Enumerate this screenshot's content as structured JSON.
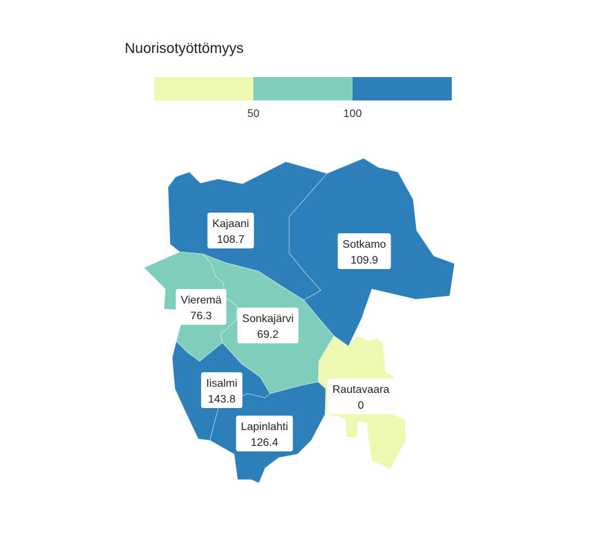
{
  "title": "Nuorisotyöttömyys",
  "legend": {
    "bins": [
      {
        "from": 0,
        "to": 50,
        "color": "#edf8b1"
      },
      {
        "from": 50,
        "to": 100,
        "color": "#7fcdbb"
      },
      {
        "from": 100,
        "to": 150,
        "color": "#2c7fb8"
      }
    ],
    "ticks": [
      "50",
      "100"
    ]
  },
  "regions": [
    {
      "id": "kajaani",
      "name": "Kajaani",
      "value": 108.7,
      "value_label": "108.7"
    },
    {
      "id": "sotkamo",
      "name": "Sotkamo",
      "value": 109.9,
      "value_label": "109.9"
    },
    {
      "id": "vierema",
      "name": "Vieremä",
      "value": 76.3,
      "value_label": "76.3"
    },
    {
      "id": "sonkajarvi",
      "name": "Sonkajärvi",
      "value": 69.2,
      "value_label": "69.2"
    },
    {
      "id": "iisalmi",
      "name": "Iisalmi",
      "value": 143.8,
      "value_label": "143.8"
    },
    {
      "id": "lapinlahti",
      "name": "Lapinlahti",
      "value": 126.4,
      "value_label": "126.4"
    },
    {
      "id": "rautavaara",
      "name": "Rautavaara",
      "value": 0,
      "value_label": "0"
    }
  ]
}
